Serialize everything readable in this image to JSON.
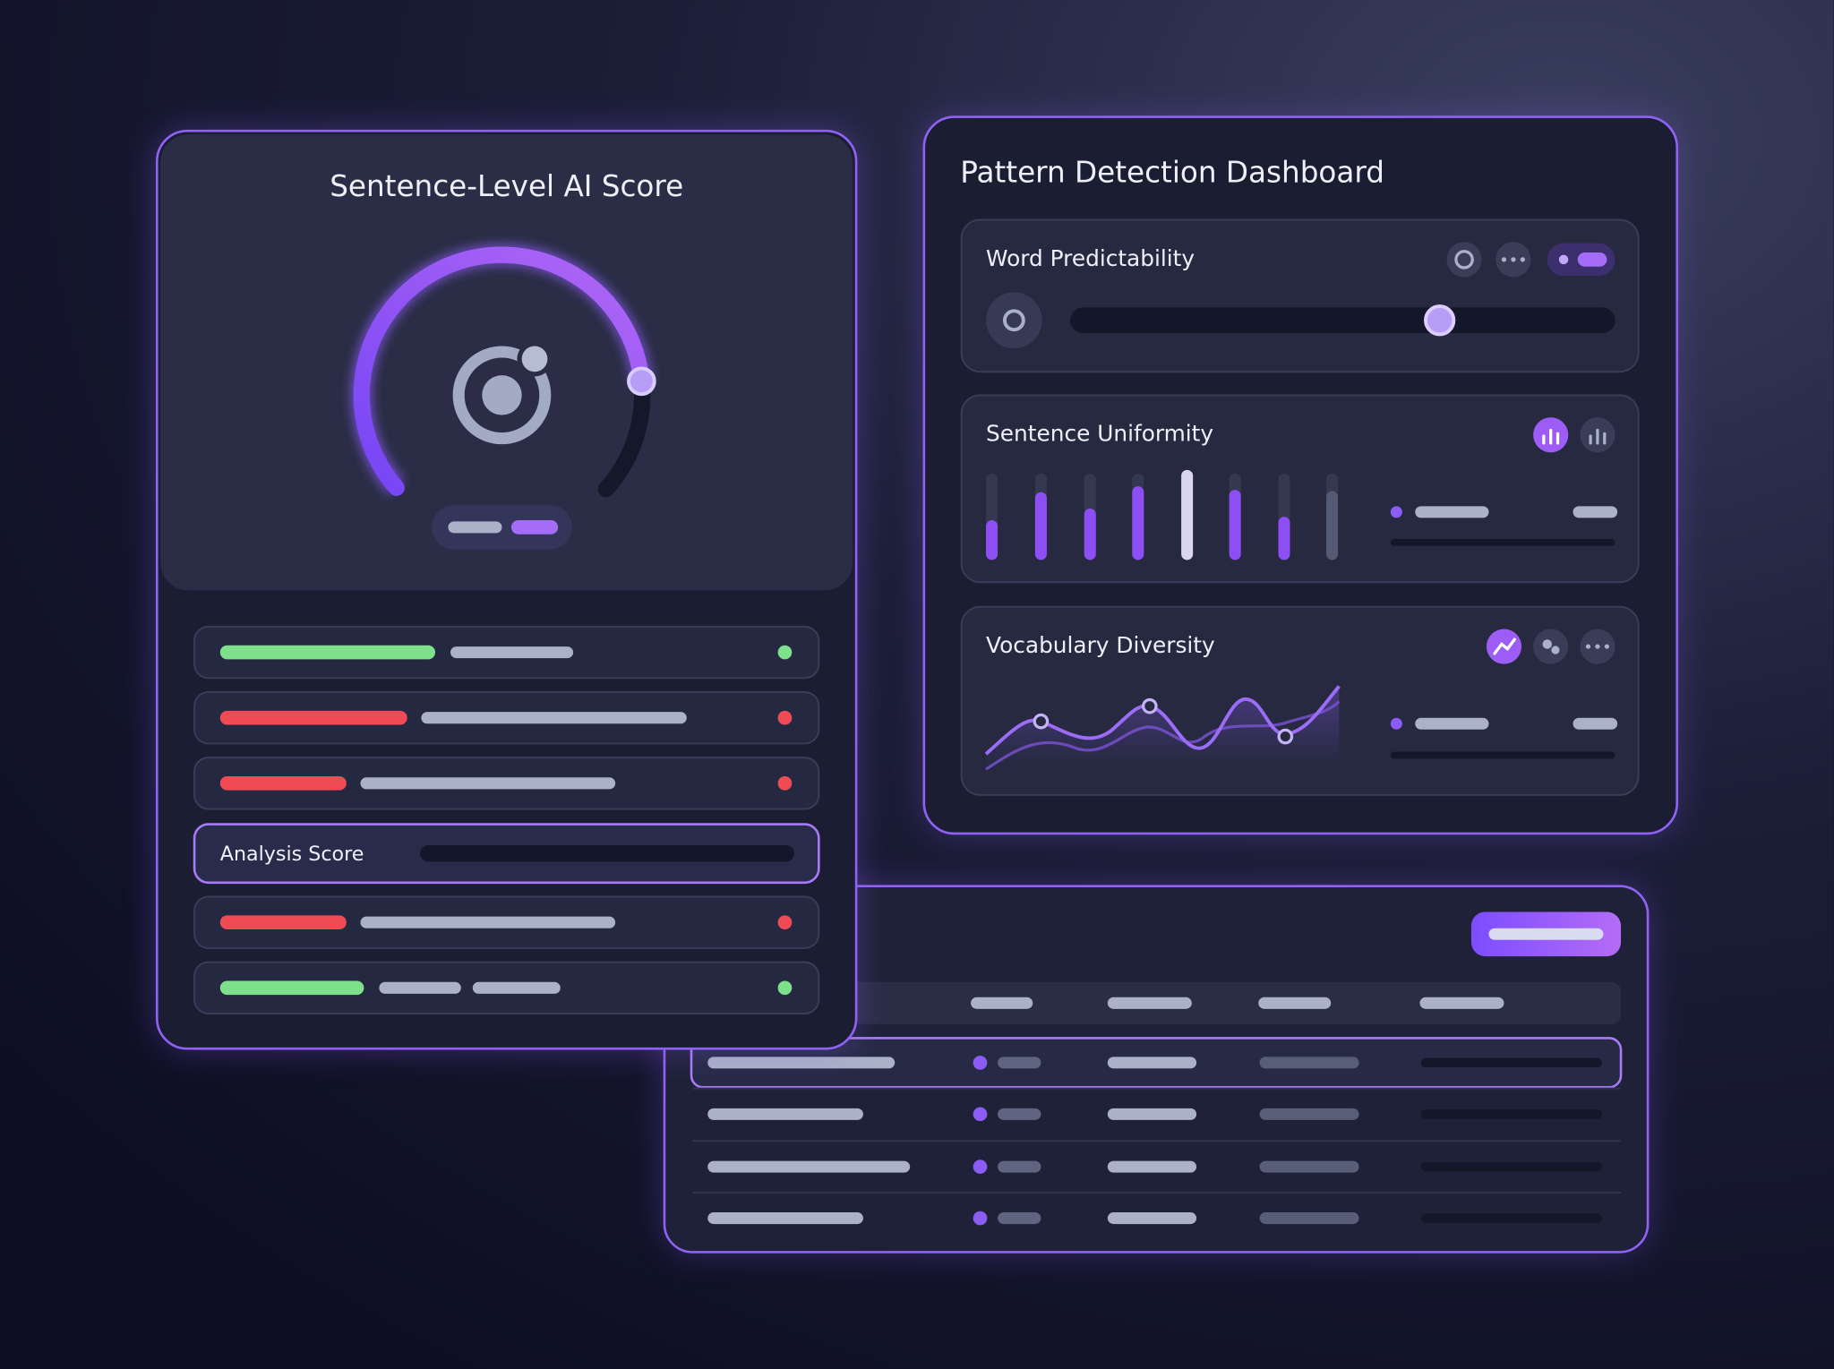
{
  "left_card": {
    "title": "Sentence-Level AI Score",
    "analysis_label": "Analysis Score"
  },
  "right_card": {
    "title": "Pattern Detection Dashboard",
    "panels": [
      "Word Predictability",
      "Sentence Uniformity",
      "Vocabulary Diversity"
    ]
  }
}
